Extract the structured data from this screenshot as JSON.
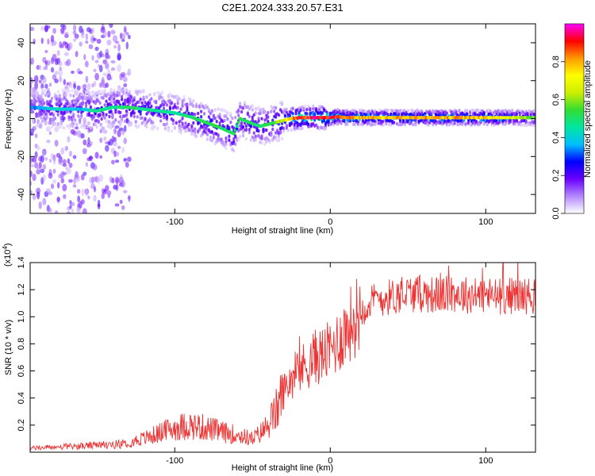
{
  "page_title": "C2E1.2024.333.20.57.E31",
  "chart_data": [
    {
      "type": "heatmap",
      "title": "C2E1.2024.333.20.57.E31",
      "xlabel": "Height of straight line (km)",
      "ylabel": "Frequency (Hz)",
      "xlim": [
        -193,
        132
      ],
      "ylim": [
        -50,
        50
      ],
      "x_ticks": [
        -100,
        0,
        100
      ],
      "x_tick_labels": [
        "-100",
        "0",
        "100"
      ],
      "y_ticks": [
        -40,
        -20,
        0,
        20,
        40
      ],
      "y_tick_labels": [
        "-40",
        "-20",
        "0",
        "20",
        "40"
      ],
      "colorbar": {
        "label": "Normalized spectral amplitude",
        "range": [
          0,
          1
        ],
        "ticks": [
          "0.0",
          "0.2",
          "0.4",
          "0.6",
          "0.8"
        ],
        "colors": [
          "#ffffff",
          "#b388ff",
          "#6a00ff",
          "#0000ff",
          "#00bfff",
          "#00e6a0",
          "#33dd33",
          "#ccee00",
          "#ffff00",
          "#ff9900",
          "#ff0000",
          "#ff00ff"
        ]
      },
      "ridge": {
        "description": "peak frequency vs height",
        "x": [
          -193,
          -175,
          -160,
          -150,
          -140,
          -130,
          -120,
          -110,
          -100,
          -90,
          -80,
          -70,
          -62,
          -58,
          -52,
          -45,
          -40,
          -35,
          -30,
          -25,
          -20,
          -10,
          0,
          5,
          10,
          20,
          40,
          60,
          80,
          100,
          120,
          132
        ],
        "y": [
          6,
          5,
          5,
          4,
          6,
          6,
          5,
          4,
          3,
          1,
          -2,
          -5,
          -8,
          0,
          -2,
          -4,
          -3,
          -2,
          -1,
          0,
          0.5,
          0.5,
          0.5,
          1,
          0.5,
          0.5,
          0.5,
          0.5,
          0.5,
          0.5,
          0.5,
          0.5
        ],
        "amplitude": [
          0.35,
          0.45,
          0.4,
          0.5,
          0.5,
          0.55,
          0.5,
          0.5,
          0.5,
          0.55,
          0.55,
          0.55,
          0.55,
          0.55,
          0.55,
          0.55,
          0.55,
          0.6,
          0.7,
          0.85,
          0.95,
          1.0,
          1.0,
          1.0,
          0.9,
          0.85,
          0.85,
          0.85,
          0.85,
          0.85,
          0.7,
          0.6
        ]
      }
    },
    {
      "type": "line",
      "xlabel": "Height of straight line (km)",
      "ylabel": "SNR (10 * v/v)",
      "y_multiplier": "(x10",
      "y_multiplier_exp": "4",
      "y_multiplier_close": ")",
      "xlim": [
        -193,
        132
      ],
      "ylim": [
        0,
        1.4
      ],
      "x_ticks": [
        -100,
        0,
        100
      ],
      "x_tick_labels": [
        "-100",
        "0",
        "100"
      ],
      "y_ticks": [
        0.2,
        0.4,
        0.6,
        0.8,
        1.0,
        1.2,
        1.4
      ],
      "y_tick_labels": [
        "0.2",
        "0.4",
        "0.6",
        "0.8",
        "1.0",
        "1.2",
        "1.4"
      ],
      "color": "#ee3333",
      "series": [
        {
          "name": "SNR",
          "x": [
            -193,
            -170,
            -150,
            -135,
            -120,
            -110,
            -100,
            -90,
            -80,
            -70,
            -60,
            -50,
            -45,
            -40,
            -35,
            -30,
            -25,
            -20,
            -15,
            -10,
            -5,
            0,
            5,
            10,
            15,
            20,
            25,
            30,
            40,
            50,
            60,
            70,
            80,
            90,
            100,
            110,
            120,
            132
          ],
          "y": [
            0.03,
            0.04,
            0.05,
            0.06,
            0.1,
            0.14,
            0.18,
            0.2,
            0.18,
            0.15,
            0.13,
            0.1,
            0.14,
            0.2,
            0.3,
            0.45,
            0.55,
            0.6,
            0.65,
            0.7,
            0.72,
            0.75,
            0.82,
            0.9,
            0.98,
            1.05,
            1.1,
            1.13,
            1.15,
            1.17,
            1.17,
            1.16,
            1.17,
            1.16,
            1.16,
            1.15,
            1.16,
            1.15
          ]
        }
      ]
    }
  ]
}
